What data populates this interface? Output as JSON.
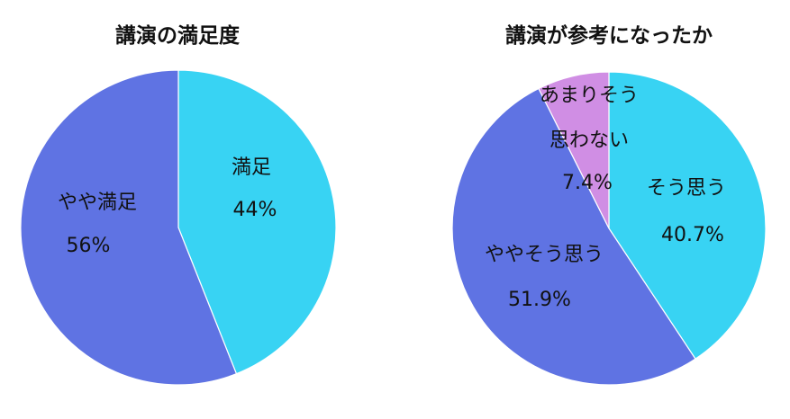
{
  "chart_data": [
    {
      "type": "pie",
      "title": "講演の満足度",
      "slices": [
        {
          "label": [
            "満足"
          ],
          "value": 44,
          "value_label": "44%",
          "color": "#38d3f3"
        },
        {
          "label": [
            "やや満足"
          ],
          "value": 56,
          "value_label": "56%",
          "color": "#5f73e3"
        }
      ],
      "start_angle_deg": 0,
      "direction": "clockwise",
      "legend": "none"
    },
    {
      "type": "pie",
      "title": "講演が参考になったか",
      "slices": [
        {
          "label": [
            "そう思う"
          ],
          "value": 40.7,
          "value_label": "40.7%",
          "color": "#38d3f3"
        },
        {
          "label": [
            "ややそう思う"
          ],
          "value": 51.9,
          "value_label": "51.9%",
          "color": "#5f73e3"
        },
        {
          "label": [
            "あまりそう",
            "思わない"
          ],
          "value": 7.4,
          "value_label": "7.4%",
          "color": "#d08ee4"
        }
      ],
      "start_angle_deg": 0,
      "direction": "clockwise",
      "legend": "none"
    }
  ]
}
